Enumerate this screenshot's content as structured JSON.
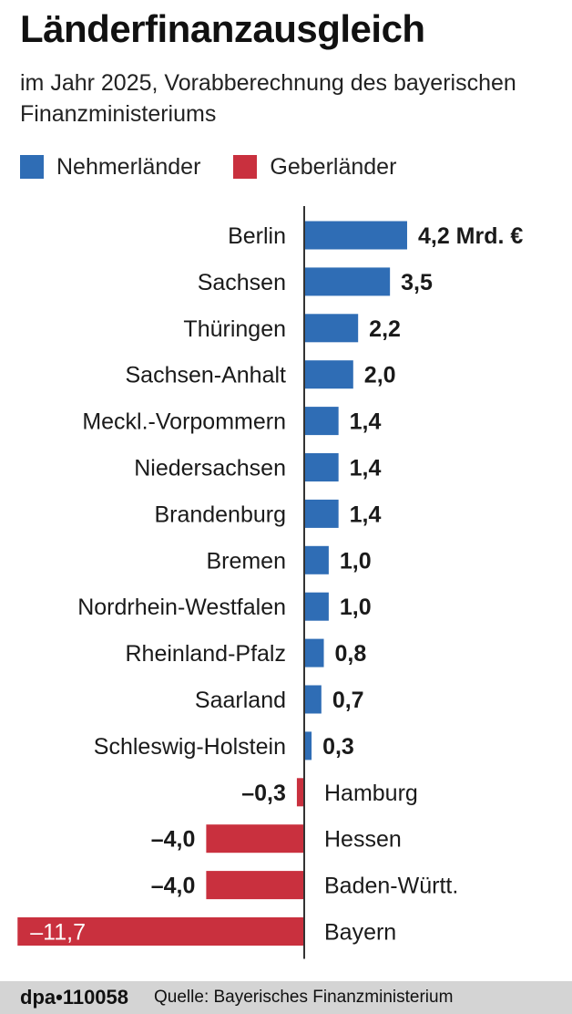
{
  "title": "Länderfinanzausgleich",
  "subtitle": "im Jahr 2025, Vorabberechnung des bayerischen Finanzministeriums",
  "legend": [
    {
      "label": "Nehmerländer",
      "color": "#2f6db5"
    },
    {
      "label": "Geberländer",
      "color": "#c9303e"
    }
  ],
  "footer": {
    "id": "dpa•110058",
    "source": "Quelle: Bayerisches Finanzministerium"
  },
  "chart_data": {
    "type": "bar",
    "orientation": "horizontal",
    "unit": "Mrd. €",
    "categories": [
      "Berlin",
      "Sachsen",
      "Thüringen",
      "Sachsen-Anhalt",
      "Meckl.-Vorpommern",
      "Niedersachsen",
      "Brandenburg",
      "Bremen",
      "Nordrhein-Westfalen",
      "Rheinland-Pfalz",
      "Saarland",
      "Schleswig-Holstein",
      "Hamburg",
      "Hessen",
      "Baden-Württ.",
      "Bayern"
    ],
    "values": [
      4.2,
      3.5,
      2.2,
      2.0,
      1.4,
      1.4,
      1.4,
      1.0,
      1.0,
      0.8,
      0.7,
      0.3,
      -0.3,
      -4.0,
      -4.0,
      -11.7
    ],
    "value_labels": [
      "4,2 Mrd. €",
      "3,5",
      "2,2",
      "2,0",
      "1,4",
      "1,4",
      "1,4",
      "1,0",
      "1,0",
      "0,8",
      "0,7",
      "0,3",
      "–0,3",
      "–4,0",
      "–4,0",
      "–11,7"
    ],
    "positive_color": "#2f6db5",
    "negative_color": "#c9303e",
    "grid": false,
    "legend_position": "top-left"
  }
}
